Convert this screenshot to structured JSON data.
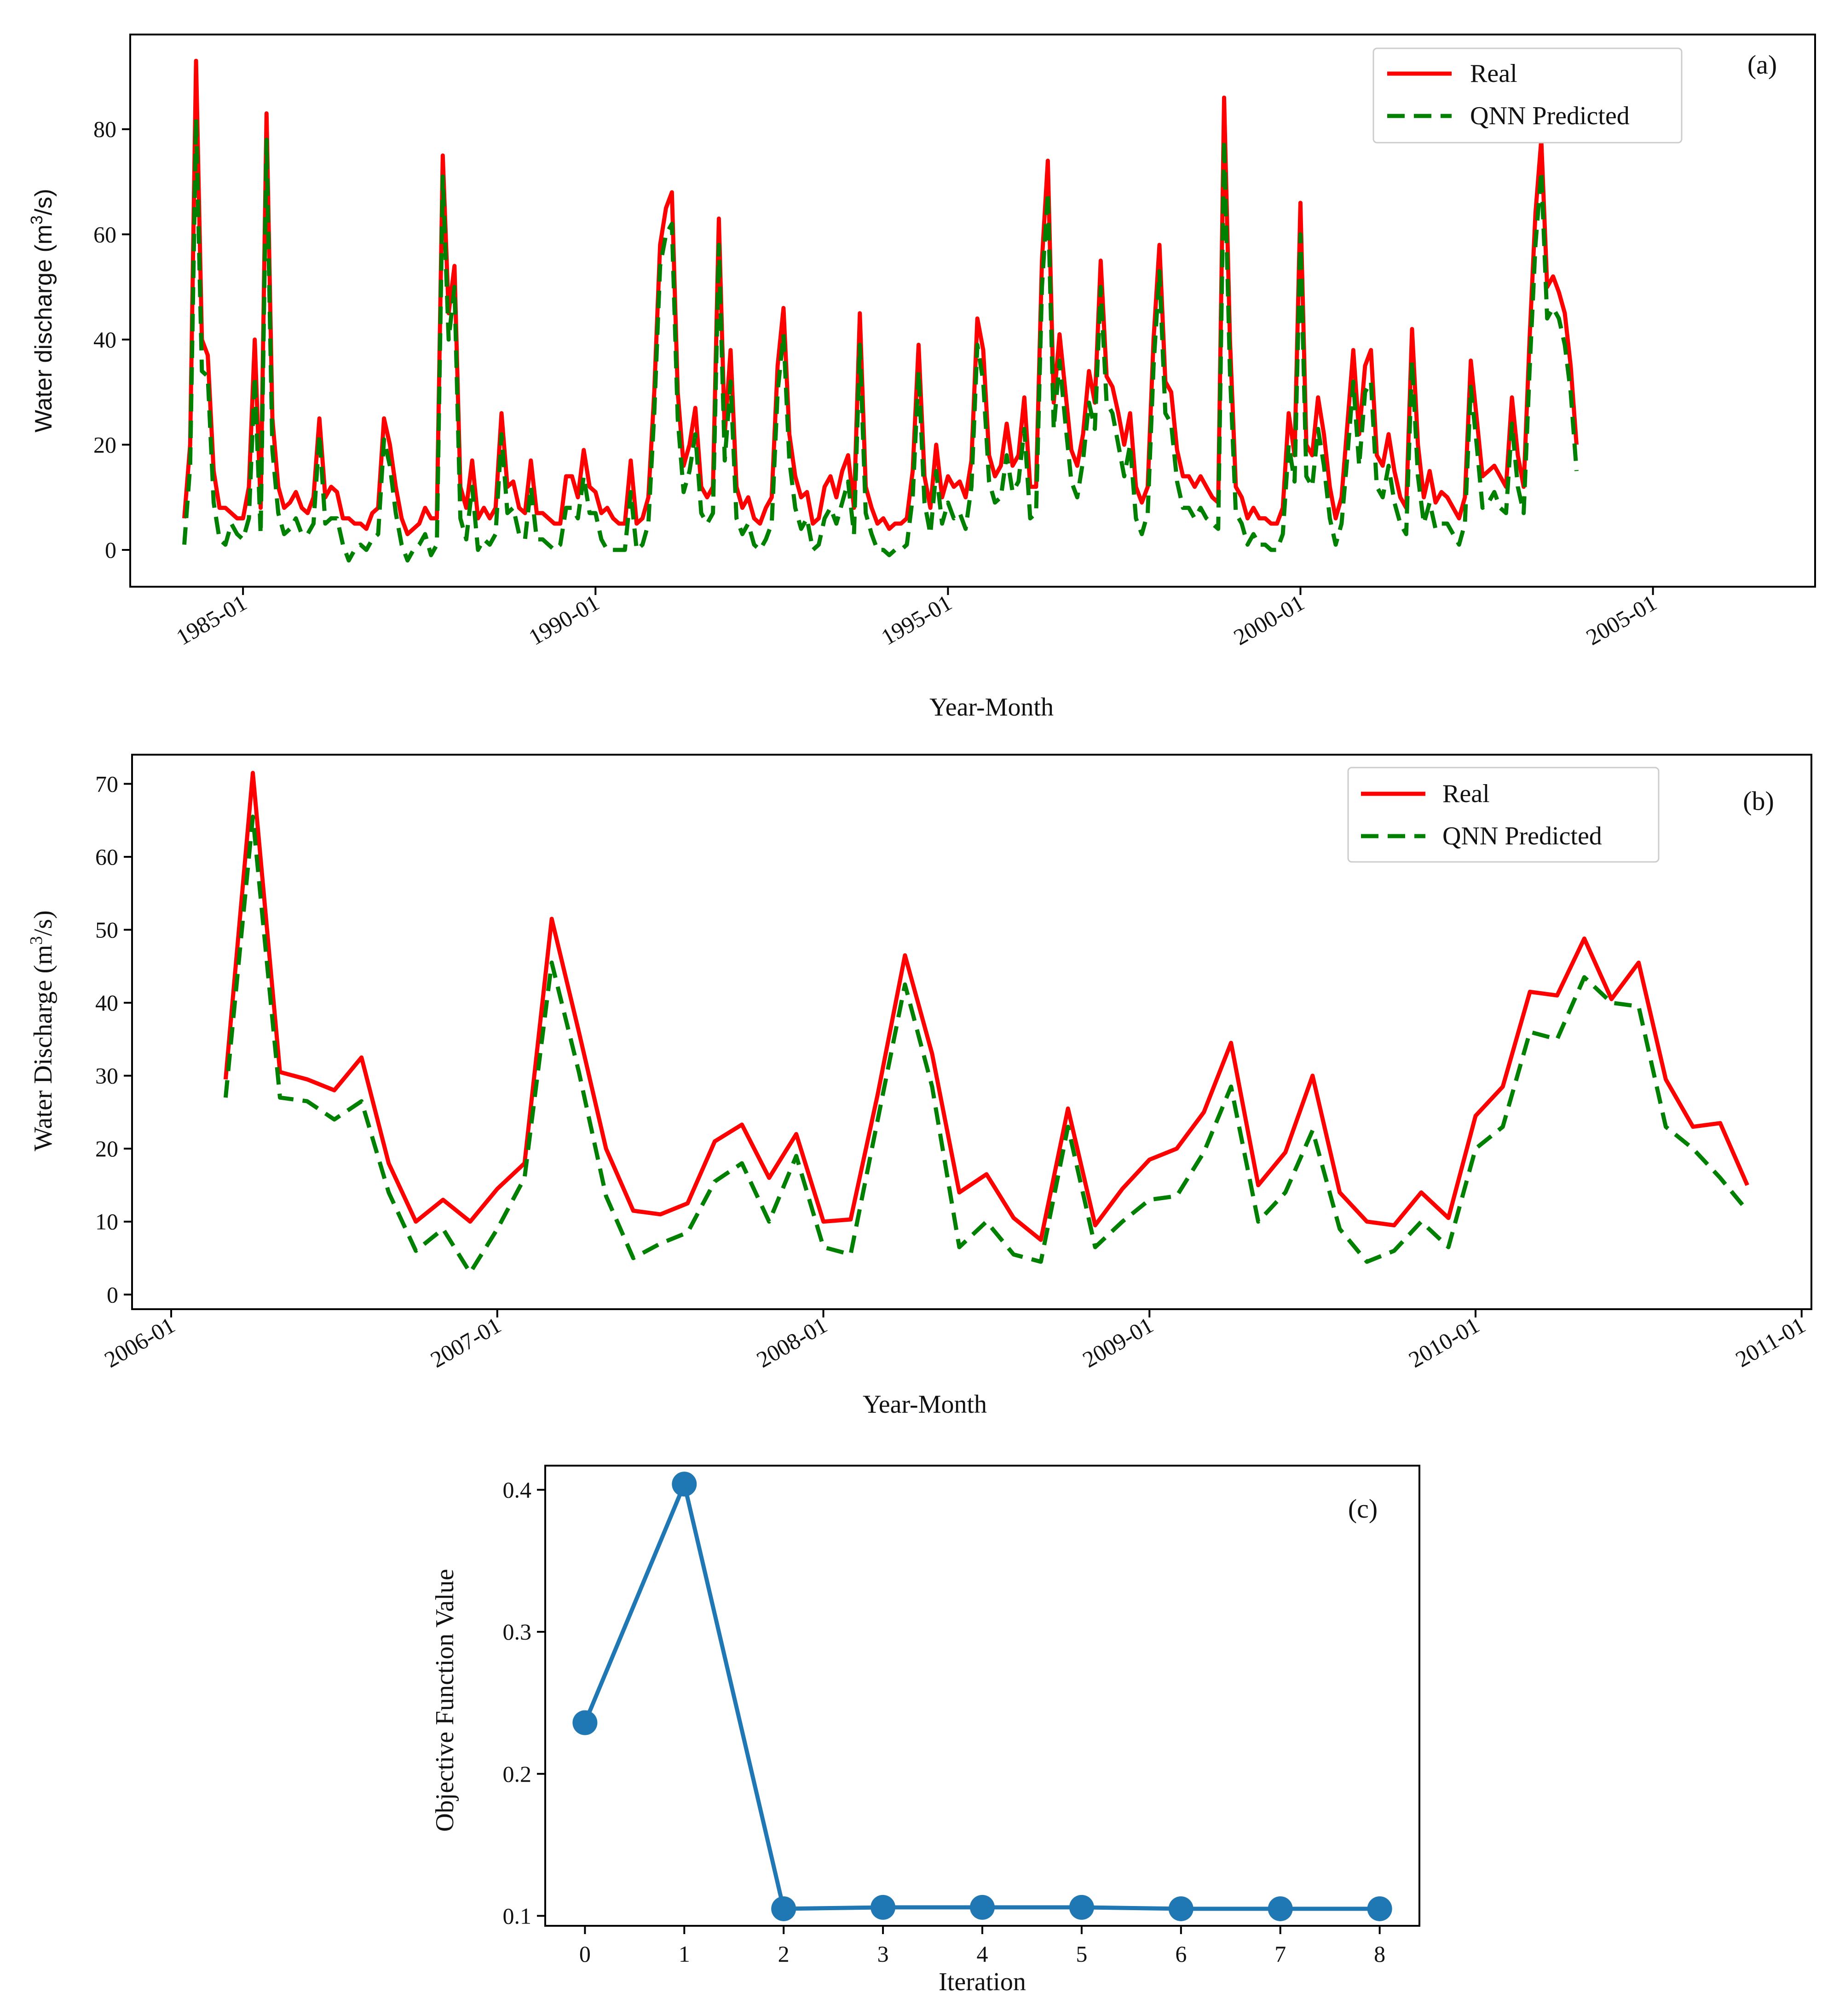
{
  "colors": {
    "real": "#ff0000",
    "predicted": "#008000",
    "objective": "#1f77b4"
  },
  "chart_data": [
    {
      "id": "a",
      "type": "line",
      "panel_label": "(a)",
      "xlabel": "Year-Month",
      "ylabel": "Water discharge (m³/s)",
      "ylabel_parts": [
        "Water discharge (m",
        "3",
        "/s)"
      ],
      "xlim": [
        1983.4,
        2007.3
      ],
      "ylim": [
        -7,
        98
      ],
      "x_ticks": [
        1985,
        1990,
        1995,
        2000,
        2005
      ],
      "x_tick_labels": [
        "1985-01",
        "1990-01",
        "1995-01",
        "2000-01",
        "2005-01"
      ],
      "y_ticks": [
        0,
        20,
        40,
        60,
        80
      ],
      "y_tick_labels": [
        "0",
        "20",
        "40",
        "60",
        "80"
      ],
      "legend_position": "top-right",
      "x_start": 1984.167,
      "x_step": 0.08333,
      "series": [
        {
          "name": "Real",
          "style": "solid",
          "values": [
            6,
            20,
            93,
            40,
            37,
            15,
            8,
            8,
            7,
            6,
            6,
            12,
            40,
            8,
            83,
            25,
            12,
            8,
            9,
            11,
            8,
            7,
            10,
            25,
            10,
            12,
            11,
            6,
            6,
            5,
            5,
            4,
            7,
            8,
            25,
            20,
            12,
            6,
            3,
            4,
            5,
            8,
            6,
            6,
            75,
            45,
            54,
            12,
            8,
            17,
            6,
            8,
            6,
            8,
            26,
            12,
            13,
            8,
            7,
            17,
            7,
            7,
            6,
            5,
            5,
            14,
            14,
            10,
            19,
            12,
            11,
            7,
            8,
            6,
            5,
            5,
            17,
            5,
            6,
            10,
            30,
            58,
            65,
            68,
            30,
            16,
            20,
            27,
            12,
            10,
            12,
            63,
            22,
            38,
            12,
            8,
            10,
            6,
            5,
            8,
            10,
            35,
            46,
            22,
            14,
            10,
            11,
            5,
            6,
            12,
            14,
            10,
            15,
            18,
            8,
            45,
            12,
            8,
            5,
            6,
            4,
            5,
            5,
            6,
            15,
            39,
            14,
            8,
            20,
            10,
            14,
            12,
            13,
            10,
            17,
            44,
            38,
            18,
            14,
            16,
            24,
            16,
            18,
            29,
            12,
            12,
            55,
            74,
            28,
            41,
            30,
            19,
            16,
            22,
            34,
            28,
            55,
            33,
            31,
            26,
            20,
            26,
            12,
            9,
            12,
            40,
            58,
            32,
            30,
            19,
            14,
            14,
            12,
            14,
            12,
            10,
            9,
            86,
            40,
            12,
            10,
            6,
            8,
            6,
            6,
            5,
            5,
            8,
            26,
            18,
            66,
            20,
            18,
            29,
            22,
            12,
            6,
            10,
            24,
            38,
            22,
            35,
            38,
            18,
            16,
            22,
            15,
            10,
            8,
            42,
            20,
            10,
            15,
            9,
            11,
            10,
            8,
            6,
            10,
            36,
            25,
            14,
            15,
            16,
            14,
            12,
            29,
            18,
            12,
            40,
            64,
            78,
            50,
            52,
            49,
            45,
            35,
            20
          ]
        },
        {
          "name": "QNN Predicted",
          "style": "dashed",
          "values": [
            1,
            16,
            82,
            34,
            33,
            9,
            2,
            1,
            5,
            3,
            2,
            6,
            33,
            3,
            78,
            19,
            7,
            3,
            4,
            6,
            3,
            3,
            5,
            22,
            5,
            6,
            6,
            1,
            -2,
            0,
            1,
            0,
            2,
            3,
            21,
            16,
            7,
            1,
            -2,
            0,
            1,
            3,
            -1,
            1,
            71,
            40,
            50,
            6,
            2,
            12,
            0,
            2,
            1,
            3,
            22,
            7,
            8,
            3,
            2,
            12,
            2,
            2,
            1,
            0,
            1,
            8,
            8,
            6,
            14,
            7,
            7,
            2,
            0,
            0,
            0,
            0,
            11,
            0,
            1,
            5,
            26,
            54,
            60,
            62,
            25,
            11,
            15,
            22,
            7,
            5,
            7,
            58,
            17,
            32,
            6,
            3,
            5,
            1,
            0,
            2,
            5,
            30,
            41,
            17,
            8,
            4,
            6,
            0,
            1,
            6,
            8,
            5,
            9,
            13,
            3,
            39,
            7,
            3,
            0,
            0,
            -1,
            0,
            0,
            1,
            10,
            34,
            9,
            3,
            15,
            5,
            9,
            6,
            7,
            4,
            12,
            39,
            32,
            13,
            9,
            10,
            18,
            11,
            13,
            23,
            6,
            7,
            50,
            68,
            23,
            36,
            24,
            13,
            10,
            17,
            28,
            23,
            50,
            28,
            26,
            20,
            14,
            20,
            6,
            3,
            7,
            35,
            53,
            26,
            24,
            13,
            8,
            8,
            6,
            8,
            6,
            5,
            4,
            78,
            34,
            7,
            5,
            1,
            3,
            1,
            1,
            0,
            0,
            3,
            20,
            13,
            60,
            14,
            12,
            23,
            16,
            6,
            1,
            5,
            18,
            32,
            16,
            30,
            32,
            12,
            10,
            16,
            9,
            5,
            3,
            36,
            14,
            5,
            9,
            4,
            5,
            5,
            3,
            1,
            5,
            31,
            20,
            8,
            9,
            11,
            8,
            7,
            24,
            12,
            7,
            34,
            58,
            72,
            44,
            46,
            44,
            39,
            30,
            15
          ]
        }
      ]
    },
    {
      "id": "b",
      "type": "line",
      "panel_label": "(b)",
      "xlabel": "Year-Month",
      "ylabel": "Water Discharge (m³/s)",
      "ylabel_parts": [
        "Water Discharge (m",
        "3",
        "/s)"
      ],
      "xlim": [
        2005.88,
        2011.03
      ],
      "ylim": [
        -2,
        74
      ],
      "x_ticks": [
        2006,
        2007,
        2008,
        2009,
        2010,
        2011
      ],
      "x_tick_labels": [
        "2006-01",
        "2007-01",
        "2008-01",
        "2009-01",
        "2010-01",
        "2011-01"
      ],
      "y_ticks": [
        0,
        10,
        20,
        30,
        40,
        50,
        60,
        70
      ],
      "y_tick_labels": [
        "0",
        "10",
        "20",
        "30",
        "40",
        "50",
        "60",
        "70"
      ],
      "legend_position": "top-right",
      "x_start": 2006.167,
      "x_step": 0.08333,
      "series": [
        {
          "name": "Real",
          "style": "solid",
          "values": [
            29.5,
            71.5,
            30.5,
            29.5,
            28,
            32.5,
            18,
            10,
            13,
            10,
            14.5,
            18,
            51.5,
            36,
            20,
            11.5,
            11,
            12.5,
            21,
            23.3,
            16,
            22,
            10,
            10.3,
            27.5,
            46.5,
            33,
            14,
            16.5,
            10.5,
            7.5,
            25.5,
            9.5,
            14.5,
            18.5,
            20,
            25,
            34.5,
            15,
            19.5,
            30,
            14,
            10,
            9.5,
            14,
            10.5,
            24.5,
            28.5,
            41.5,
            41,
            48.8,
            40.5,
            45.5,
            29.5,
            23,
            23.5,
            15
          ]
        },
        {
          "name": "QNN Predicted",
          "style": "dashed",
          "values": [
            27,
            65.5,
            27,
            26.5,
            24,
            26.5,
            14,
            6,
            9,
            3,
            9,
            16,
            45.5,
            30.5,
            13.5,
            5,
            7,
            8.5,
            15.5,
            18,
            10,
            19,
            6.5,
            5.5,
            24,
            42.5,
            28.5,
            6.5,
            10,
            5.5,
            4.5,
            23,
            6.5,
            10,
            13,
            13.5,
            19.5,
            28.5,
            10,
            14,
            22.5,
            9,
            4.5,
            6,
            10,
            6.5,
            20,
            23,
            36,
            35,
            43.5,
            40,
            39.5,
            23,
            20,
            16,
            11.5
          ]
        }
      ]
    },
    {
      "id": "c",
      "type": "line",
      "panel_label": "(c)",
      "xlabel": "Iteration",
      "ylabel": "Objective Function Value",
      "xlim": [
        -0.4,
        8.4
      ],
      "ylim": [
        0.093,
        0.417
      ],
      "x_ticks": [
        0,
        1,
        2,
        3,
        4,
        5,
        6,
        7,
        8
      ],
      "x_tick_labels": [
        "0",
        "1",
        "2",
        "3",
        "4",
        "5",
        "6",
        "7",
        "8"
      ],
      "y_ticks": [
        0.1,
        0.2,
        0.3,
        0.4
      ],
      "y_tick_labels": [
        "0.1",
        "0.2",
        "0.3",
        "0.4"
      ],
      "x": [
        0,
        1,
        2,
        3,
        4,
        5,
        6,
        7,
        8
      ],
      "values": [
        0.236,
        0.404,
        0.105,
        0.106,
        0.106,
        0.106,
        0.105,
        0.105,
        0.105
      ]
    }
  ]
}
